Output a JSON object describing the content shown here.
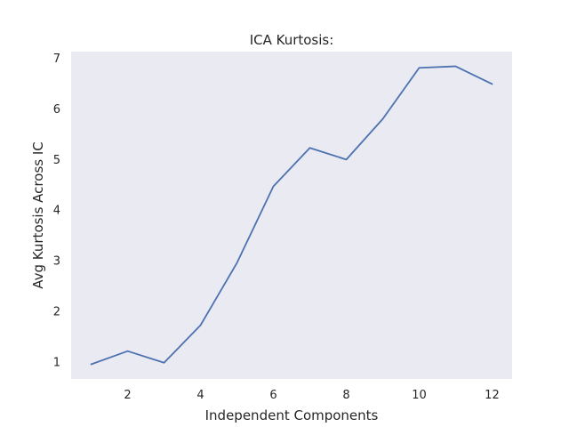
{
  "chart_data": {
    "type": "line",
    "title": "ICA Kurtosis:",
    "xlabel": "Independent Components",
    "ylabel": "Avg Kurtosis Across IC",
    "xlim": [
      0.45,
      12.55
    ],
    "ylim": [
      0.66,
      7.12
    ],
    "xticks": [
      2,
      4,
      6,
      8,
      10,
      12
    ],
    "yticks": [
      1,
      2,
      3,
      4,
      5,
      6,
      7
    ],
    "grid": false,
    "background": "#eaeaf2",
    "series": [
      {
        "color": "#4c72b0",
        "x": [
          1,
          2,
          3,
          4,
          5,
          6,
          7,
          8,
          9,
          10,
          11,
          12
        ],
        "y": [
          0.95,
          1.21,
          0.98,
          1.72,
          2.95,
          4.46,
          5.22,
          4.99,
          5.79,
          6.8,
          6.83,
          6.48
        ]
      }
    ]
  }
}
